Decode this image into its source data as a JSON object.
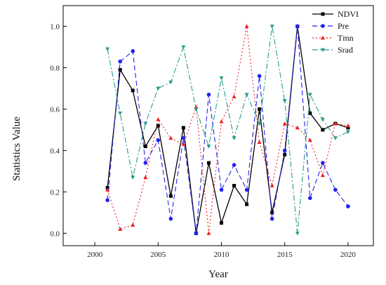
{
  "chart_data": {
    "type": "line",
    "xlabel": "Year",
    "ylabel": "Statistics Value",
    "xlim": [
      1997.5,
      2022
    ],
    "ylim": [
      -0.06,
      1.1
    ],
    "xticks": [
      2000,
      2005,
      2010,
      2015,
      2020
    ],
    "yticks": [
      0.0,
      0.2,
      0.4,
      0.6,
      0.8,
      1.0
    ],
    "ytick_labels": [
      "0.0",
      "0.2",
      "0.4",
      "0.6",
      "0.8",
      "1.0"
    ],
    "legend_position": "top-right",
    "grid": false,
    "x": [
      2001,
      2002,
      2003,
      2004,
      2005,
      2006,
      2007,
      2008,
      2009,
      2010,
      2011,
      2012,
      2013,
      2014,
      2015,
      2016,
      2017,
      2018,
      2019,
      2020
    ],
    "series": [
      {
        "name": "NDVI",
        "color": "#000000",
        "dash": "solid",
        "marker": "square",
        "values": [
          0.22,
          0.79,
          0.69,
          0.42,
          0.52,
          0.18,
          0.51,
          0.0,
          0.34,
          0.05,
          0.23,
          0.14,
          0.6,
          0.1,
          0.38,
          1.0,
          0.58,
          0.5,
          0.53,
          0.51
        ]
      },
      {
        "name": "Pre",
        "color": "#2222ee",
        "dash": "dashed",
        "marker": "circle",
        "values": [
          0.16,
          0.83,
          0.88,
          0.34,
          0.45,
          0.07,
          0.46,
          0.0,
          0.67,
          0.21,
          0.33,
          0.21,
          0.76,
          0.07,
          0.4,
          1.0,
          0.17,
          0.34,
          0.21,
          0.13
        ]
      },
      {
        "name": "Tmn",
        "color": "#ee2222",
        "dash": "dotted",
        "marker": "triangle-up",
        "values": [
          0.21,
          0.02,
          0.04,
          0.27,
          0.55,
          0.46,
          0.43,
          0.61,
          0.0,
          0.54,
          0.66,
          1.0,
          0.44,
          0.23,
          0.53,
          0.51,
          0.45,
          0.28,
          0.53,
          0.52
        ]
      },
      {
        "name": "Srad",
        "color": "#2a9d8a",
        "dash": "dashdot",
        "marker": "triangle-down",
        "values": [
          0.89,
          0.58,
          0.27,
          0.53,
          0.7,
          0.73,
          0.9,
          0.6,
          0.42,
          0.75,
          0.46,
          0.67,
          0.53,
          1.0,
          0.64,
          0.0,
          0.67,
          0.55,
          0.46,
          0.49
        ]
      }
    ]
  }
}
